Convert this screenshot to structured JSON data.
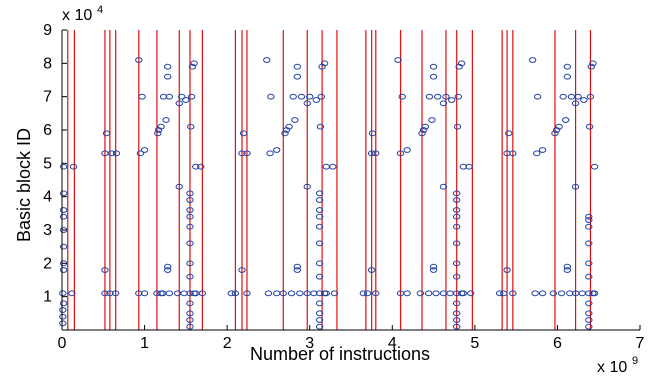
{
  "chart_data": {
    "type": "scatter",
    "title": "",
    "xlabel": "Number of instructions",
    "ylabel": "Basic block ID",
    "x_multiplier_label": "x 10",
    "x_multiplier_exp": "9",
    "y_multiplier_label": "x 10",
    "y_multiplier_exp": "4",
    "xlim": [
      0,
      7
    ],
    "ylim": [
      0,
      9
    ],
    "xticks": [
      "0",
      "1",
      "2",
      "3",
      "4",
      "5",
      "6",
      "7"
    ],
    "yticks": [
      "1",
      "2",
      "3",
      "4",
      "5",
      "6",
      "7",
      "8",
      "9"
    ],
    "grid": false,
    "legend": "none",
    "marker_color": "#1f3fa0",
    "line_color": "#e01010",
    "phase_boundaries_x": [
      0.07,
      0.15,
      0.52,
      0.58,
      0.65,
      0.93,
      1.15,
      1.42,
      1.55,
      1.7,
      2.1,
      2.18,
      2.24,
      2.68,
      2.97,
      3.15,
      3.33,
      3.68,
      3.75,
      3.8,
      4.1,
      4.36,
      4.65,
      4.78,
      4.97,
      5.33,
      5.39,
      5.46,
      5.97,
      6.22,
      6.4
    ],
    "series": [
      {
        "points": [
          [
            0.01,
            0.2
          ],
          [
            0.01,
            0.4
          ],
          [
            0.01,
            0.6
          ],
          [
            0.02,
            0.8
          ],
          [
            0.01,
            1.1
          ],
          [
            0.02,
            1.8
          ],
          [
            0.02,
            2.0
          ],
          [
            0.02,
            2.5
          ],
          [
            0.02,
            3.0
          ],
          [
            0.02,
            3.4
          ],
          [
            0.02,
            3.6
          ],
          [
            0.02,
            4.1
          ],
          [
            0.02,
            4.9
          ],
          [
            0.12,
            1.1
          ],
          [
            0.14,
            4.9
          ],
          [
            0.52,
            1.1
          ],
          [
            0.52,
            1.8
          ],
          [
            0.52,
            5.3
          ],
          [
            0.54,
            5.9
          ],
          [
            0.58,
            1.1
          ],
          [
            0.6,
            5.3
          ],
          [
            0.65,
            1.1
          ],
          [
            0.66,
            5.3
          ],
          [
            0.93,
            1.1
          ],
          [
            0.93,
            8.1
          ],
          [
            0.95,
            5.3
          ],
          [
            0.97,
            7.0
          ],
          [
            1.0,
            1.1
          ],
          [
            1.0,
            5.4
          ],
          [
            1.15,
            1.1
          ],
          [
            1.16,
            5.9
          ],
          [
            1.17,
            6.0
          ],
          [
            1.2,
            1.1
          ],
          [
            1.2,
            6.1
          ],
          [
            1.22,
            1.1
          ],
          [
            1.23,
            7.0
          ],
          [
            1.26,
            6.3
          ],
          [
            1.28,
            1.8
          ],
          [
            1.28,
            1.9
          ],
          [
            1.28,
            7.6
          ],
          [
            1.28,
            7.9
          ],
          [
            1.3,
            1.1
          ],
          [
            1.3,
            7.0
          ],
          [
            1.4,
            1.1
          ],
          [
            1.42,
            4.3
          ],
          [
            1.42,
            6.8
          ],
          [
            1.45,
            7.0
          ],
          [
            1.48,
            1.1
          ],
          [
            1.5,
            6.9
          ],
          [
            1.55,
            0.1
          ],
          [
            1.55,
            0.3
          ],
          [
            1.55,
            0.5
          ],
          [
            1.55,
            0.8
          ],
          [
            1.55,
            1.1
          ],
          [
            1.55,
            1.6
          ],
          [
            1.55,
            2.0
          ],
          [
            1.55,
            2.6
          ],
          [
            1.55,
            3.1
          ],
          [
            1.55,
            3.4
          ],
          [
            1.55,
            3.6
          ],
          [
            1.55,
            3.9
          ],
          [
            1.55,
            4.1
          ],
          [
            1.56,
            6.1
          ],
          [
            1.57,
            7.0
          ],
          [
            1.58,
            7.9
          ],
          [
            1.6,
            1.1
          ],
          [
            1.6,
            8.0
          ],
          [
            1.62,
            1.1
          ],
          [
            1.62,
            4.9
          ],
          [
            1.7,
            1.1
          ],
          [
            1.68,
            4.9
          ],
          [
            2.05,
            1.1
          ],
          [
            2.1,
            1.1
          ],
          [
            2.18,
            1.8
          ],
          [
            2.18,
            5.3
          ],
          [
            2.2,
            5.9
          ],
          [
            2.24,
            1.1
          ],
          [
            2.24,
            5.3
          ],
          [
            2.48,
            8.1
          ],
          [
            2.5,
            1.1
          ],
          [
            2.52,
            5.3
          ],
          [
            2.53,
            7.0
          ],
          [
            2.6,
            1.1
          ],
          [
            2.6,
            5.4
          ],
          [
            2.68,
            1.1
          ],
          [
            2.7,
            5.9
          ],
          [
            2.72,
            6.0
          ],
          [
            2.75,
            6.1
          ],
          [
            2.78,
            1.1
          ],
          [
            2.8,
            7.0
          ],
          [
            2.82,
            6.3
          ],
          [
            2.85,
            1.8
          ],
          [
            2.85,
            1.9
          ],
          [
            2.85,
            7.6
          ],
          [
            2.85,
            7.9
          ],
          [
            2.88,
            1.1
          ],
          [
            2.9,
            7.0
          ],
          [
            2.97,
            1.1
          ],
          [
            2.97,
            4.3
          ],
          [
            2.97,
            6.8
          ],
          [
            3.0,
            7.0
          ],
          [
            3.05,
            1.1
          ],
          [
            3.08,
            6.9
          ],
          [
            3.12,
            0.1
          ],
          [
            3.12,
            0.3
          ],
          [
            3.12,
            0.5
          ],
          [
            3.12,
            0.8
          ],
          [
            3.12,
            1.1
          ],
          [
            3.12,
            1.6
          ],
          [
            3.12,
            2.0
          ],
          [
            3.12,
            2.6
          ],
          [
            3.12,
            3.1
          ],
          [
            3.12,
            3.4
          ],
          [
            3.12,
            3.6
          ],
          [
            3.12,
            3.9
          ],
          [
            3.12,
            4.1
          ],
          [
            3.13,
            6.1
          ],
          [
            3.14,
            7.0
          ],
          [
            3.15,
            7.9
          ],
          [
            3.18,
            1.1
          ],
          [
            3.18,
            8.0
          ],
          [
            3.2,
            1.1
          ],
          [
            3.2,
            4.9
          ],
          [
            3.3,
            1.1
          ],
          [
            3.28,
            4.9
          ],
          [
            3.65,
            1.1
          ],
          [
            3.7,
            1.1
          ],
          [
            3.75,
            1.8
          ],
          [
            3.75,
            5.3
          ],
          [
            3.76,
            5.9
          ],
          [
            3.8,
            1.1
          ],
          [
            3.8,
            5.3
          ],
          [
            4.07,
            8.1
          ],
          [
            4.1,
            1.1
          ],
          [
            4.1,
            5.3
          ],
          [
            4.12,
            7.0
          ],
          [
            4.18,
            1.1
          ],
          [
            4.18,
            5.4
          ],
          [
            4.34,
            1.1
          ],
          [
            4.36,
            5.9
          ],
          [
            4.38,
            6.0
          ],
          [
            4.4,
            6.1
          ],
          [
            4.44,
            1.1
          ],
          [
            4.45,
            7.0
          ],
          [
            4.48,
            6.3
          ],
          [
            4.5,
            1.8
          ],
          [
            4.5,
            1.9
          ],
          [
            4.5,
            7.6
          ],
          [
            4.5,
            7.9
          ],
          [
            4.53,
            1.1
          ],
          [
            4.55,
            7.0
          ],
          [
            4.62,
            1.1
          ],
          [
            4.62,
            4.3
          ],
          [
            4.62,
            6.8
          ],
          [
            4.65,
            7.0
          ],
          [
            4.7,
            1.1
          ],
          [
            4.72,
            6.9
          ],
          [
            4.78,
            0.1
          ],
          [
            4.78,
            0.3
          ],
          [
            4.78,
            0.5
          ],
          [
            4.78,
            0.8
          ],
          [
            4.78,
            1.1
          ],
          [
            4.78,
            1.6
          ],
          [
            4.78,
            2.0
          ],
          [
            4.78,
            2.6
          ],
          [
            4.78,
            3.1
          ],
          [
            4.78,
            3.4
          ],
          [
            4.78,
            3.6
          ],
          [
            4.78,
            3.9
          ],
          [
            4.78,
            4.1
          ],
          [
            4.79,
            6.1
          ],
          [
            4.8,
            7.0
          ],
          [
            4.81,
            7.9
          ],
          [
            4.84,
            1.1
          ],
          [
            4.84,
            8.0
          ],
          [
            4.86,
            1.1
          ],
          [
            4.86,
            4.9
          ],
          [
            4.95,
            1.1
          ],
          [
            4.93,
            4.9
          ],
          [
            5.3,
            1.1
          ],
          [
            5.35,
            1.1
          ],
          [
            5.39,
            1.8
          ],
          [
            5.39,
            5.3
          ],
          [
            5.41,
            5.9
          ],
          [
            5.46,
            1.1
          ],
          [
            5.46,
            5.3
          ],
          [
            5.7,
            8.1
          ],
          [
            5.73,
            1.1
          ],
          [
            5.75,
            5.3
          ],
          [
            5.76,
            7.0
          ],
          [
            5.82,
            1.1
          ],
          [
            5.82,
            5.4
          ],
          [
            5.95,
            1.1
          ],
          [
            5.97,
            5.9
          ],
          [
            5.99,
            6.0
          ],
          [
            6.02,
            6.1
          ],
          [
            6.05,
            1.1
          ],
          [
            6.07,
            7.0
          ],
          [
            6.1,
            6.3
          ],
          [
            6.12,
            1.8
          ],
          [
            6.12,
            1.9
          ],
          [
            6.12,
            7.6
          ],
          [
            6.12,
            7.9
          ],
          [
            6.15,
            1.1
          ],
          [
            6.17,
            7.0
          ],
          [
            6.22,
            1.1
          ],
          [
            6.22,
            4.3
          ],
          [
            6.22,
            6.8
          ],
          [
            6.25,
            7.0
          ],
          [
            6.3,
            1.1
          ],
          [
            6.32,
            6.9
          ],
          [
            6.38,
            0.1
          ],
          [
            6.38,
            0.3
          ],
          [
            6.38,
            0.5
          ],
          [
            6.38,
            0.8
          ],
          [
            6.38,
            1.1
          ],
          [
            6.38,
            1.6
          ],
          [
            6.38,
            2.0
          ],
          [
            6.38,
            2.6
          ],
          [
            6.38,
            3.1
          ],
          [
            6.38,
            3.3
          ],
          [
            6.38,
            3.4
          ],
          [
            6.39,
            6.1
          ],
          [
            6.4,
            7.0
          ],
          [
            6.41,
            7.9
          ],
          [
            6.43,
            1.1
          ],
          [
            6.43,
            8.0
          ],
          [
            6.45,
            1.1
          ],
          [
            6.45,
            4.9
          ]
        ]
      }
    ]
  }
}
